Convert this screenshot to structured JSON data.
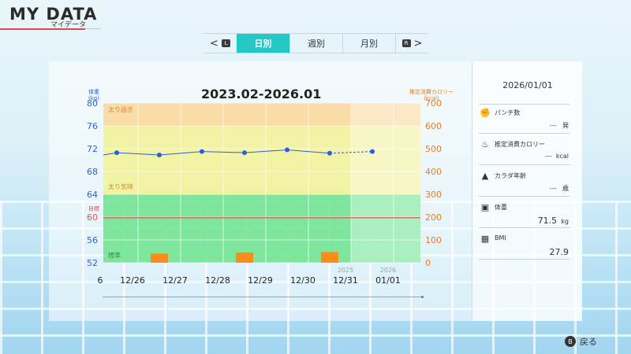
{
  "header": {
    "title": "MY DATA",
    "subtitle": "マイデータ"
  },
  "tabs": [
    {
      "label": "日別",
      "active": true
    },
    {
      "label": "週別",
      "active": false
    },
    {
      "label": "月別",
      "active": false
    }
  ],
  "tab_nav": {
    "left_button": "L",
    "right_button": "R",
    "left_arrow": "<",
    "right_arrow": ">"
  },
  "chart_title": "2023.02-2026.01",
  "left_axis_title": [
    "体重",
    "(kg)"
  ],
  "right_axis_title": [
    "推定消費カロリー",
    "(kcal)"
  ],
  "chart_data": {
    "type": "bar",
    "title": "2023.02-2026.01",
    "categories": [
      "12/26",
      "12/27",
      "12/28",
      "12/29",
      "12/30",
      "12/31",
      "01/01"
    ],
    "partial_left_tick": "6",
    "year_labels": [
      {
        "index": 5,
        "text": "2025"
      },
      {
        "index": 6,
        "text": "2026"
      }
    ],
    "left_axis": {
      "label": "体重 (kg)",
      "ylim": [
        52,
        80
      ],
      "ticks": [
        80,
        76,
        72,
        68,
        64,
        60,
        56,
        52
      ]
    },
    "right_axis": {
      "label": "推定消費カロリー (kcal)",
      "ylim": [
        0,
        700
      ],
      "ticks": [
        700,
        600,
        500,
        400,
        300,
        200,
        100,
        0
      ]
    },
    "zones": [
      {
        "label": "太り過ぎ",
        "from": 76,
        "to": 80,
        "color": "#fbd79a"
      },
      {
        "label": "",
        "from": 64,
        "to": 76,
        "color": "#f2f295"
      },
      {
        "label": "太り気味",
        "from": 64,
        "to": 64.6,
        "color": "#f2f295"
      },
      {
        "label": "標準",
        "from": 52,
        "to": 64,
        "color": "#6be38b"
      }
    ],
    "zone_text": [
      {
        "label": "太り過ぎ",
        "at": 78.2
      },
      {
        "label": "太り気味",
        "at": 64.7
      },
      {
        "label": "標準",
        "at": 52.6
      }
    ],
    "target": {
      "label": "目標",
      "value": 59.9,
      "color": "#e05555"
    },
    "series": [
      {
        "name": "体重",
        "axis": "left",
        "type": "line",
        "values": [
          71.3,
          70.9,
          71.5,
          71.3,
          71.8,
          71.2,
          71.5
        ],
        "color": "#2c5fd9",
        "dashed_from_index": 5,
        "extends_left_from": 70.9
      },
      {
        "name": "推定消費カロリー",
        "axis": "right",
        "type": "bar",
        "values": [
          null,
          40,
          null,
          45,
          null,
          47,
          null
        ],
        "color": "#fb8c19"
      }
    ],
    "grid": true
  },
  "side": {
    "date": "2026/01/01",
    "items": [
      {
        "icon": "glove-icon",
        "label": "パンチ数",
        "value": "---",
        "unit": "発"
      },
      {
        "icon": "flame-icon",
        "label": "推定消費カロリー",
        "value": "---",
        "unit": "kcal"
      },
      {
        "icon": "body-icon",
        "label": "カラダ年齢",
        "value": "---",
        "unit": "歳"
      },
      {
        "icon": "scale-icon",
        "label": "体重",
        "value": "71.5",
        "unit": "kg"
      },
      {
        "icon": "calculator-icon",
        "label": "BMI",
        "value": "27.9",
        "unit": ""
      }
    ]
  },
  "footer": {
    "back_button": "B",
    "back_label": "戻る"
  }
}
